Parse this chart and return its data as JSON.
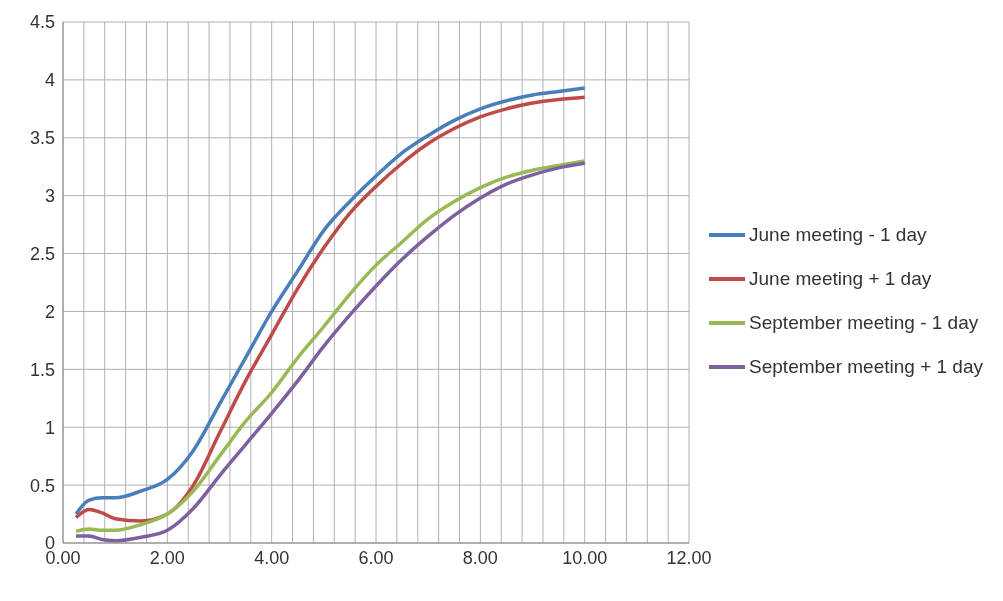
{
  "chart_data": {
    "type": "line",
    "x": [
      0.25,
      0.5,
      0.75,
      1,
      1.5,
      2,
      2.5,
      3,
      3.5,
      4,
      4.5,
      5,
      5.5,
      6,
      6.5,
      7,
      7.5,
      8,
      8.5,
      9,
      9.5,
      10
    ],
    "series": [
      {
        "name": "June meeting - 1 day",
        "color": "#4a7ebb",
        "values": [
          0.25,
          0.37,
          0.39,
          0.39,
          0.45,
          0.55,
          0.8,
          1.2,
          1.6,
          2.0,
          2.35,
          2.7,
          2.95,
          3.17,
          3.37,
          3.52,
          3.65,
          3.75,
          3.82,
          3.87,
          3.9,
          3.93
        ]
      },
      {
        "name": "June meeting + 1 day",
        "color": "#be4b48",
        "values": [
          0.22,
          0.29,
          0.26,
          0.21,
          0.19,
          0.25,
          0.5,
          0.95,
          1.4,
          1.8,
          2.2,
          2.55,
          2.85,
          3.08,
          3.28,
          3.45,
          3.58,
          3.68,
          3.75,
          3.8,
          3.83,
          3.85
        ]
      },
      {
        "name": "September meeting - 1 day",
        "color": "#98b954",
        "values": [
          0.1,
          0.12,
          0.11,
          0.11,
          0.16,
          0.25,
          0.45,
          0.75,
          1.05,
          1.3,
          1.6,
          1.87,
          2.15,
          2.4,
          2.6,
          2.8,
          2.95,
          3.07,
          3.16,
          3.22,
          3.26,
          3.3
        ]
      },
      {
        "name": "September meeting + 1 day",
        "color": "#7d60a0",
        "values": [
          0.06,
          0.06,
          0.03,
          0.02,
          0.05,
          0.11,
          0.3,
          0.58,
          0.85,
          1.12,
          1.4,
          1.7,
          1.97,
          2.22,
          2.45,
          2.65,
          2.83,
          2.98,
          3.1,
          3.18,
          3.24,
          3.28
        ]
      }
    ],
    "xlim": [
      0,
      12
    ],
    "xticks": [
      {
        "value": 0,
        "label": "0.00"
      },
      {
        "value": 0.4,
        "label": null
      },
      {
        "value": 0.8,
        "label": null
      },
      {
        "value": 1.2,
        "label": null
      },
      {
        "value": 1.6,
        "label": null
      },
      {
        "value": 2,
        "label": "2.00"
      },
      {
        "value": 2.4,
        "label": null
      },
      {
        "value": 2.8,
        "label": null
      },
      {
        "value": 3.2,
        "label": null
      },
      {
        "value": 3.6,
        "label": null
      },
      {
        "value": 4,
        "label": "4.00"
      },
      {
        "value": 4.4,
        "label": null
      },
      {
        "value": 4.8,
        "label": null
      },
      {
        "value": 5.2,
        "label": null
      },
      {
        "value": 5.6,
        "label": null
      },
      {
        "value": 6,
        "label": "6.00"
      },
      {
        "value": 6.4,
        "label": null
      },
      {
        "value": 6.8,
        "label": null
      },
      {
        "value": 7.2,
        "label": null
      },
      {
        "value": 7.6,
        "label": null
      },
      {
        "value": 8,
        "label": "8.00"
      },
      {
        "value": 8.4,
        "label": null
      },
      {
        "value": 8.8,
        "label": null
      },
      {
        "value": 9.2,
        "label": null
      },
      {
        "value": 9.6,
        "label": null
      },
      {
        "value": 10,
        "label": "10.00"
      },
      {
        "value": 10.4,
        "label": null
      },
      {
        "value": 10.8,
        "label": null
      },
      {
        "value": 11.2,
        "label": null
      },
      {
        "value": 11.6,
        "label": null
      },
      {
        "value": 12,
        "label": "12.00"
      }
    ],
    "ylim": [
      0,
      4.5
    ],
    "yticks": [
      0,
      0.5,
      1,
      1.5,
      2,
      2.5,
      3,
      3.5,
      4,
      4.5
    ],
    "grid": true,
    "legend": "right",
    "marker": "none",
    "line_style": "solid"
  }
}
